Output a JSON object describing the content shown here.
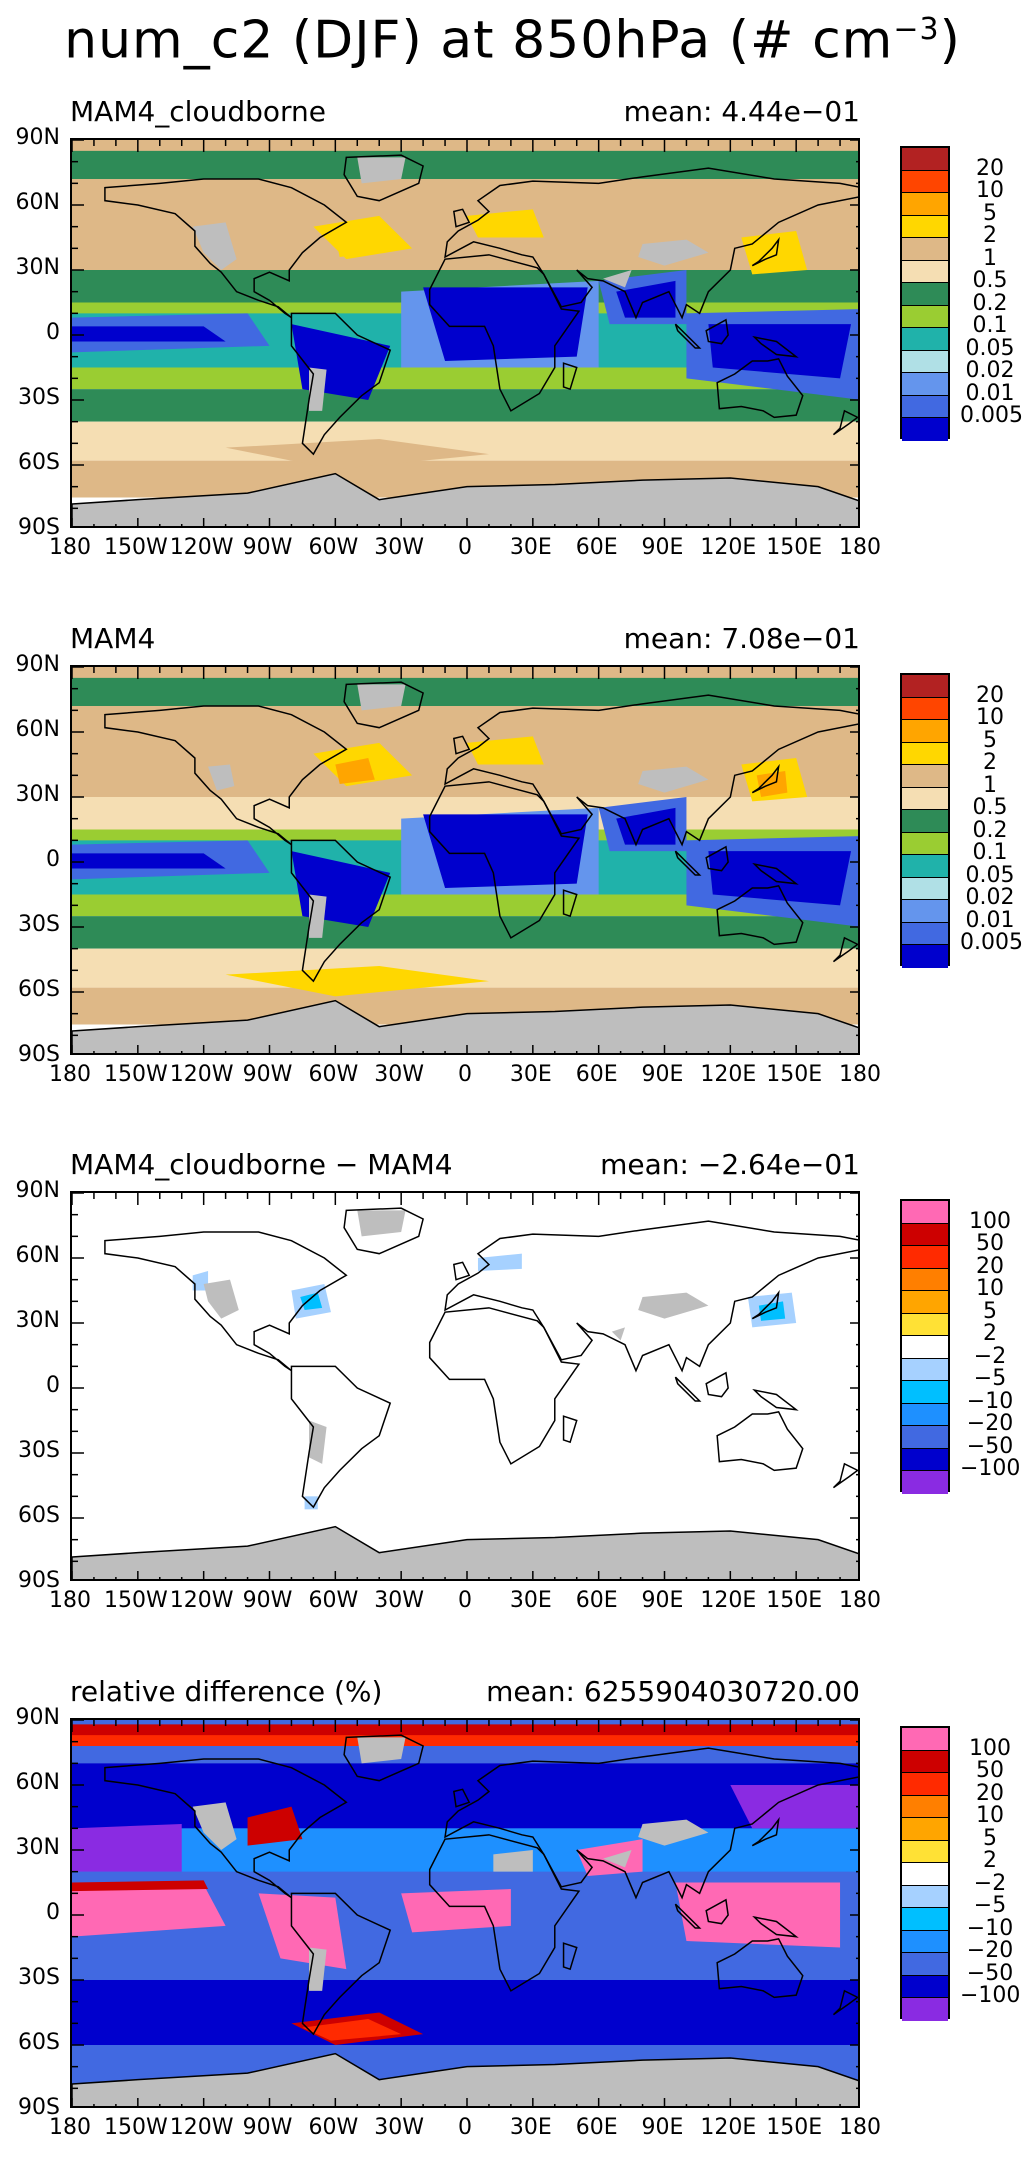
{
  "title_prefix": "num_c2 (DJF) at 850hPa (# cm",
  "title_exp": "−3",
  "title_suffix": ")",
  "lat_labels": [
    "90N",
    "60N",
    "30N",
    "0",
    "30S",
    "60S",
    "90S"
  ],
  "lon_labels": [
    "180",
    "150W",
    "120W",
    "90W",
    "60W",
    "30W",
    "0",
    "30E",
    "60E",
    "90E",
    "120E",
    "150E",
    "180"
  ],
  "colors": {
    "land_missing": "#bebebe",
    "coast": "#000000"
  },
  "colorbars": {
    "abs": {
      "labels": [
        "20",
        "10",
        "5",
        "2",
        "1",
        "0.5",
        "0.2",
        "0.1",
        "0.05",
        "0.02",
        "0.01",
        "0.005"
      ],
      "colors": [
        "#b22222",
        "#ff4500",
        "#ffa500",
        "#ffd700",
        "#deb887",
        "#f5deb3",
        "#2e8b57",
        "#9acd32",
        "#20b2aa",
        "#b0e0e6",
        "#6495ed",
        "#4169e1",
        "#0000cd"
      ]
    },
    "diff": {
      "labels": [
        "100",
        "50",
        "20",
        "10",
        "5",
        "2",
        "−2",
        "−5",
        "−10",
        "−20",
        "−50",
        "−100"
      ],
      "colors": [
        "#ff69b4",
        "#cd0000",
        "#ff2a00",
        "#ff7f00",
        "#ffa500",
        "#ffe135",
        "#ffffff",
        "#a6d1ff",
        "#00bfff",
        "#1e90ff",
        "#4169e1",
        "#0000cd",
        "#8a2be2"
      ]
    }
  },
  "panels": [
    {
      "name": "MAM4_cloudborne",
      "mean": "mean: 4.44e−01",
      "colorbar": "abs",
      "style": "cloudborne"
    },
    {
      "name": "MAM4",
      "mean": "mean: 7.08e−01",
      "colorbar": "abs",
      "style": "mam4"
    },
    {
      "name": "MAM4_cloudborne − MAM4",
      "mean": "mean: −2.64e−01",
      "colorbar": "diff",
      "style": "diff"
    },
    {
      "name": "relative difference (%)",
      "mean": "mean: 6255904030720.00",
      "colorbar": "diff",
      "style": "rel"
    }
  ]
}
